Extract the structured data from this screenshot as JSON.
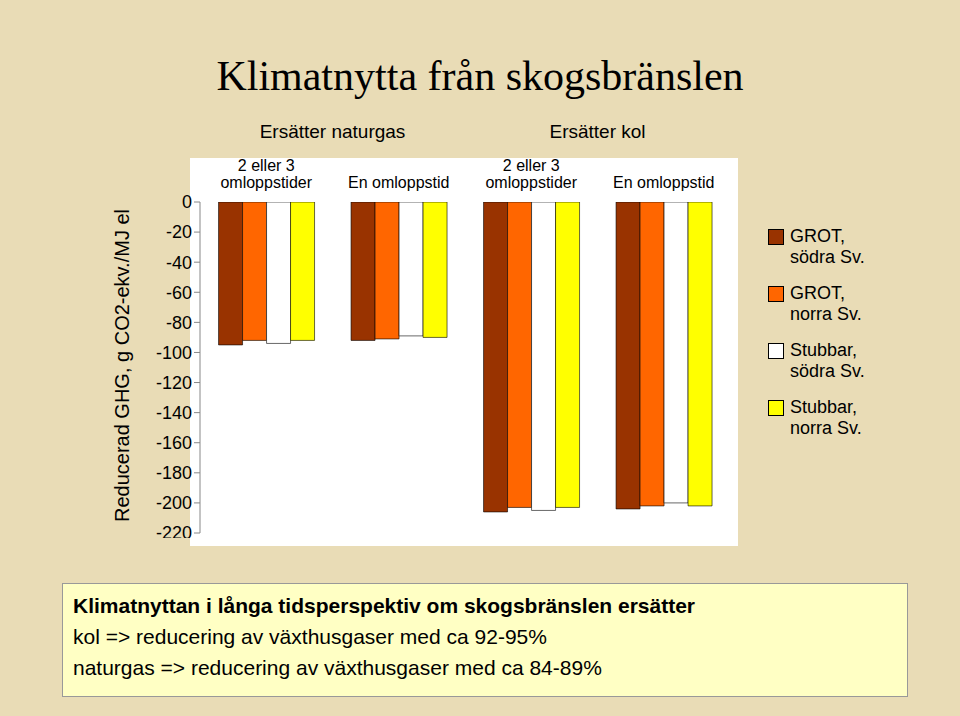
{
  "chart_data": {
    "type": "bar",
    "title": "Klimatnytta från skogsbränslen",
    "y_label": "Reducerad GHG, g CO2-ekv./MJ el",
    "annotations": [
      "Ersätter naturgas",
      "Ersätter kol"
    ],
    "note": {
      "title": "Klimatnyttan i långa tidsperspektiv om skogsbränslen ersätter",
      "lines": [
        "kol => reducering av växthusgaser med ca 92-95%",
        "naturgas => reducering av växthusgaser med ca 84-89%"
      ]
    },
    "categories": [
      "2 eller 3 omloppstider",
      "En omloppstid",
      "2 eller 3 omloppstider",
      "En omloppstid"
    ],
    "series": [
      {
        "name": "GROT, södra Sv.",
        "color": "#993300",
        "values": [
          -95,
          -92,
          -206,
          -204
        ]
      },
      {
        "name": "GROT, norra Sv.",
        "color": "#ff6600",
        "values": [
          -92,
          -91,
          -203,
          -202
        ]
      },
      {
        "name": "Stubbar, södra Sv.",
        "color": "#ffffff",
        "values": [
          -94,
          -89,
          -205,
          -200
        ]
      },
      {
        "name": "Stubbar, norra Sv.",
        "color": "#ffff00",
        "values": [
          -92,
          -90,
          -203,
          -202
        ]
      }
    ],
    "ylim": [
      -220,
      0
    ],
    "yticks": [
      0,
      -20,
      -40,
      -60,
      -80,
      -100,
      -120,
      -140,
      -160,
      -180,
      -200,
      -220
    ],
    "legend": "right",
    "grid": false
  }
}
